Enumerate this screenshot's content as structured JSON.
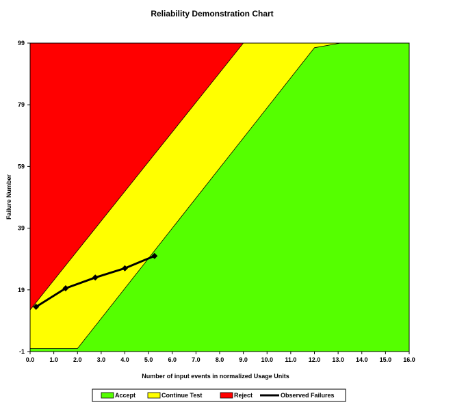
{
  "chart_data": {
    "type": "line",
    "title": "Reliability Demonstration Chart",
    "xlabel": "Number of input events in normalized Usage Units",
    "ylabel": "Failure Number",
    "xlim": [
      0,
      16
    ],
    "ylim": [
      -1,
      99
    ],
    "x_ticks": [
      "0.0",
      "1.0",
      "2.0",
      "3.0",
      "4.0",
      "5.0",
      "6.0",
      "7.0",
      "8.0",
      "9.0",
      "10.0",
      "11.0",
      "12.0",
      "13.0",
      "14.0",
      "15.0",
      "16.0"
    ],
    "y_ticks": [
      "-1",
      "19",
      "39",
      "59",
      "79",
      "99"
    ],
    "regions": [
      {
        "name": "Accept",
        "color": "#55ff00",
        "boundary": [
          [
            0,
            0
          ],
          [
            2.0,
            0
          ],
          [
            12.0,
            97.5
          ],
          [
            13.1,
            99
          ]
        ]
      },
      {
        "name": "Continue Test",
        "color": "#ffff00"
      },
      {
        "name": "Reject",
        "color": "#ff0000",
        "boundary": [
          [
            0,
            12.5
          ],
          [
            9.0,
            99
          ]
        ]
      }
    ],
    "series": [
      {
        "name": "Observed Failures",
        "color": "#000000",
        "x": [
          0.25,
          1.5,
          2.75,
          4.0,
          5.25
        ],
        "y": [
          13.5,
          19.5,
          23.0,
          26.0,
          30.0
        ]
      }
    ],
    "legend": {
      "position": "bottom",
      "entries": [
        "Accept",
        "Continue Test",
        "Reject",
        "Observed Failures"
      ]
    },
    "grid": false
  }
}
